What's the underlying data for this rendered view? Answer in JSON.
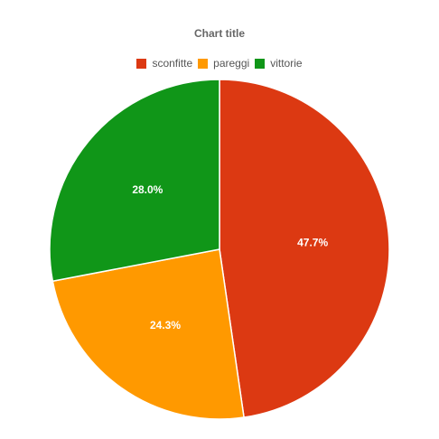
{
  "chart_data": {
    "type": "pie",
    "title": "Chart title",
    "legend_position": "top",
    "slices": [
      {
        "name": "sconfitte",
        "value": 47.7,
        "label": "47.7%",
        "color": "#DC3912"
      },
      {
        "name": "pareggi",
        "value": 24.3,
        "label": "24.3%",
        "color": "#FF9900"
      },
      {
        "name": "vittorie",
        "value": 28.0,
        "label": "28.0%",
        "color": "#109618"
      }
    ]
  }
}
